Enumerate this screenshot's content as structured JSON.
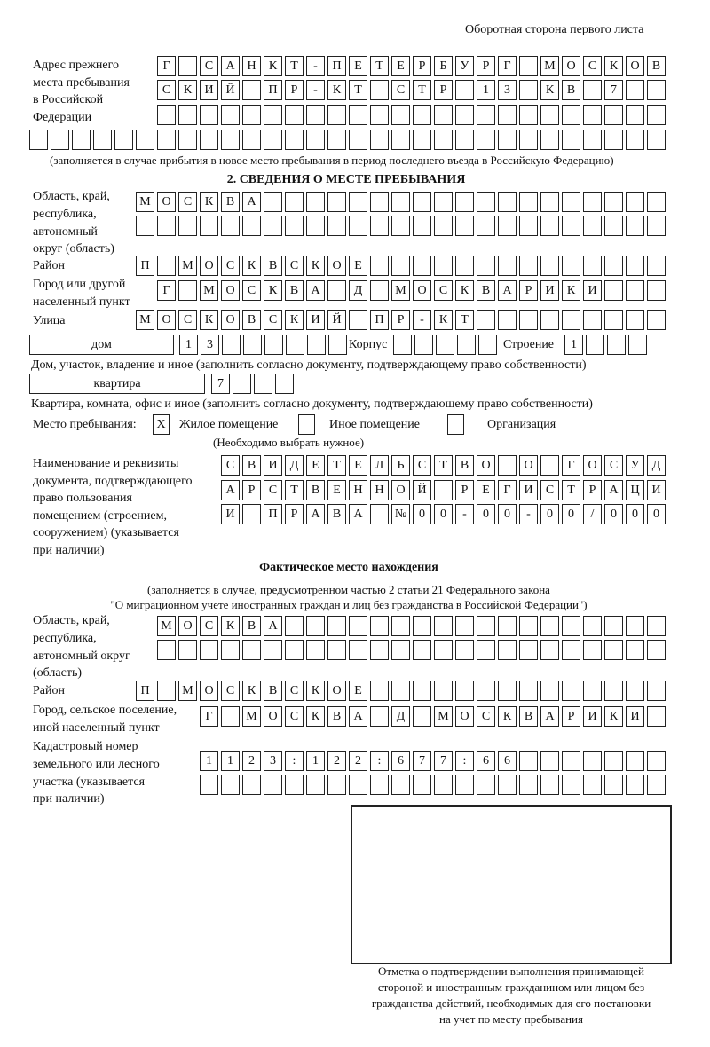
{
  "header": "Оборотная сторона первого листа",
  "previous_address": {
    "label": [
      "Адрес прежнего",
      "места пребывания",
      "в Российской",
      "Федерации"
    ],
    "rows": [
      [
        "Г",
        "",
        "С",
        "А",
        "Н",
        "К",
        "Т",
        "-",
        "П",
        "Е",
        "Т",
        "Е",
        "Р",
        "Б",
        "У",
        "Р",
        "Г",
        "",
        "М",
        "О",
        "С",
        "К",
        "О",
        "В"
      ],
      [
        "С",
        "К",
        "И",
        "Й",
        "",
        "П",
        "Р",
        "-",
        "К",
        "Т",
        "",
        "С",
        "Т",
        "Р",
        "",
        "1",
        "3",
        "",
        "К",
        "В",
        "",
        "7",
        "",
        ""
      ],
      [
        "",
        "",
        "",
        "",
        "",
        "",
        "",
        "",
        "",
        "",
        "",
        "",
        "",
        "",
        "",
        "",
        "",
        "",
        "",
        "",
        "",
        "",
        "",
        ""
      ],
      [
        "",
        "",
        "",
        "",
        "",
        "",
        "",
        "",
        "",
        "",
        "",
        "",
        "",
        "",
        "",
        "",
        "",
        "",
        "",
        "",
        "",
        "",
        "",
        "",
        "",
        "",
        "",
        "",
        "",
        ""
      ]
    ],
    "note": "(заполняется в случае прибытия в новое место пребывания в период последнего въезда в Российскую Федерацию)"
  },
  "section2": {
    "title": "2. СВЕДЕНИЯ О МЕСТЕ ПРЕБЫВАНИЯ",
    "region_label": [
      "Область, край,",
      "республика,",
      "автономный",
      "округ (область)"
    ],
    "region_rows": [
      [
        "М",
        "О",
        "С",
        "К",
        "В",
        "А",
        "",
        "",
        "",
        "",
        "",
        "",
        "",
        "",
        "",
        "",
        "",
        "",
        "",
        "",
        "",
        "",
        "",
        "",
        ""
      ],
      [
        "",
        "",
        "",
        "",
        "",
        "",
        "",
        "",
        "",
        "",
        "",
        "",
        "",
        "",
        "",
        "",
        "",
        "",
        "",
        "",
        "",
        "",
        "",
        "",
        ""
      ]
    ],
    "district_label": "Район",
    "district_row": [
      "П",
      "",
      "М",
      "О",
      "С",
      "К",
      "В",
      "С",
      "К",
      "О",
      "Е",
      "",
      "",
      "",
      "",
      "",
      "",
      "",
      "",
      "",
      "",
      "",
      "",
      "",
      ""
    ],
    "city_label": [
      "Город или другой",
      "населенный пункт"
    ],
    "city_row": [
      "Г",
      "",
      "М",
      "О",
      "С",
      "К",
      "В",
      "А",
      "",
      "Д",
      "",
      "М",
      "О",
      "С",
      "К",
      "В",
      "А",
      "Р",
      "И",
      "К",
      "И",
      "",
      "",
      ""
    ],
    "street_label": "Улица",
    "street_row": [
      "М",
      "О",
      "С",
      "К",
      "О",
      "В",
      "С",
      "К",
      "И",
      "Й",
      "",
      "П",
      "Р",
      "-",
      "К",
      "Т",
      "",
      "",
      "",
      "",
      "",
      "",
      "",
      "",
      ""
    ],
    "house_type": "дом",
    "house_row": [
      "1",
      "3",
      "",
      "",
      "",
      "",
      "",
      ""
    ],
    "korpus_label": "Корпус",
    "korpus_row": [
      "",
      "",
      "",
      "",
      ""
    ],
    "building_label": "Строение",
    "building_row": [
      "1",
      "",
      "",
      ""
    ],
    "house_note": "Дом, участок, владение и иное (заполнить согласно документу, подтверждающему право собственности)",
    "apt_type": "квартира",
    "apt_row": [
      "7",
      "",
      "",
      ""
    ],
    "apt_note": "Квартира, комната, офис и иное (заполнить согласно документу, подтверждающему право собственности)",
    "place_label": "Место пребывания:",
    "place_options": [
      {
        "label": "Жилое помещение",
        "mark": "X"
      },
      {
        "label": "Иное помещение",
        "mark": ""
      },
      {
        "label": "Организация",
        "mark": ""
      }
    ],
    "place_note": "(Необходимо выбрать нужное)",
    "doc_label": [
      "Наименование и реквизиты",
      "документа, подтверждающего",
      "право пользования",
      "помещением (строением,",
      "сооружением) (указывается",
      "при наличии)"
    ],
    "doc_rows": [
      [
        "С",
        "В",
        "И",
        "Д",
        "Е",
        "Т",
        "Е",
        "Л",
        "Ь",
        "С",
        "Т",
        "В",
        "О",
        "",
        "О",
        "",
        "Г",
        "О",
        "С",
        "У",
        "Д"
      ],
      [
        "А",
        "Р",
        "С",
        "Т",
        "В",
        "Е",
        "Н",
        "Н",
        "О",
        "Й",
        "",
        "Р",
        "Е",
        "Г",
        "И",
        "С",
        "Т",
        "Р",
        "А",
        "Ц",
        "И"
      ],
      [
        "И",
        "",
        "П",
        "Р",
        "А",
        "В",
        "А",
        "",
        "№",
        "0",
        "0",
        "-",
        "0",
        "0",
        "-",
        "0",
        "0",
        "/",
        "0",
        "0",
        "0"
      ]
    ]
  },
  "actual": {
    "title": "Фактическое место нахождения",
    "note": [
      "(заполняется в случае, предусмотренном частью 2 статьи 21 Федерального закона",
      "\"О миграционном учете иностранных граждан и лиц без гражданства в Российской Федерации\")"
    ],
    "region_label": [
      "Область, край,",
      "республика,",
      "автономный округ",
      "(область)"
    ],
    "region_rows": [
      [
        "М",
        "О",
        "С",
        "К",
        "В",
        "А",
        "",
        "",
        "",
        "",
        "",
        "",
        "",
        "",
        "",
        "",
        "",
        "",
        "",
        "",
        "",
        "",
        "",
        ""
      ],
      [
        "",
        "",
        "",
        "",
        "",
        "",
        "",
        "",
        "",
        "",
        "",
        "",
        "",
        "",
        "",
        "",
        "",
        "",
        "",
        "",
        "",
        "",
        "",
        ""
      ]
    ],
    "district_label": "Район",
    "district_row": [
      "П",
      "",
      "М",
      "О",
      "С",
      "К",
      "В",
      "С",
      "К",
      "О",
      "Е",
      "",
      "",
      "",
      "",
      "",
      "",
      "",
      "",
      "",
      "",
      "",
      "",
      "",
      ""
    ],
    "city_label": [
      "Город, сельское поселение,",
      "иной населенный пункт"
    ],
    "city_row": [
      "Г",
      "",
      "М",
      "О",
      "С",
      "К",
      "В",
      "А",
      "",
      "Д",
      "",
      "М",
      "О",
      "С",
      "К",
      "В",
      "А",
      "Р",
      "И",
      "К",
      "И",
      ""
    ],
    "cadastre_label": [
      "Кадастровый номер",
      "земельного или лесного",
      "участка (указывается",
      "при наличии)"
    ],
    "cadastre_rows": [
      [
        "1",
        "1",
        "2",
        "3",
        ":",
        "1",
        "2",
        "2",
        ":",
        "6",
        "7",
        "7",
        ":",
        "6",
        "6",
        "",
        "",
        "",
        "",
        "",
        "",
        ""
      ],
      [
        "",
        "",
        "",
        "",
        "",
        "",
        "",
        "",
        "",
        "",
        "",
        "",
        "",
        "",
        "",
        "",
        "",
        "",
        "",
        "",
        "",
        ""
      ]
    ]
  },
  "stamp_caption": [
    "Отметка о подтверждении выполнения принимающей",
    "стороной и иностранным гражданином или лицом без",
    "гражданства действий, необходимых для его постановки",
    "на учет по месту пребывания"
  ]
}
